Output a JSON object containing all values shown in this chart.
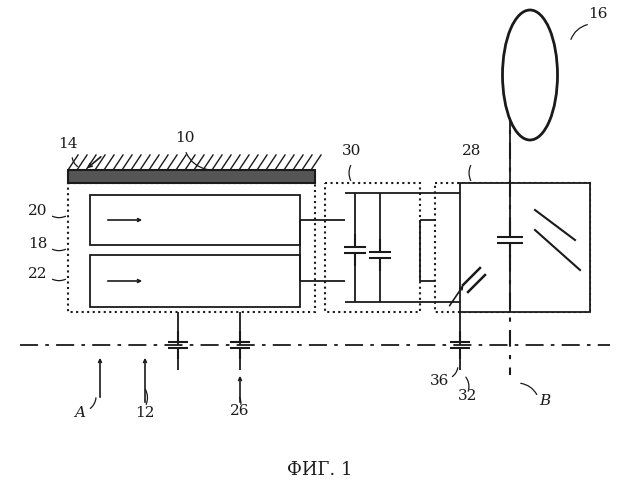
{
  "title": "ФИГ. 1",
  "bg_color": "#ffffff",
  "line_color": "#1a1a1a",
  "fig_w": 6.4,
  "fig_h": 4.87,
  "dpi": 100
}
